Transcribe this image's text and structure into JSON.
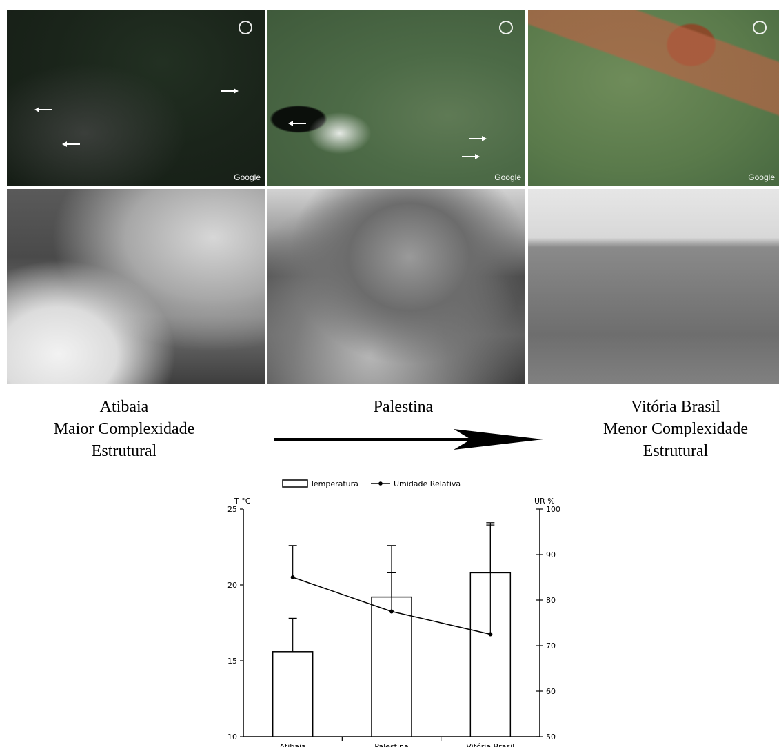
{
  "top_panels": {
    "satellite": [
      {
        "site": "Atibaia",
        "watermark": "Google"
      },
      {
        "site": "Palestina",
        "watermark": "Google"
      },
      {
        "site": "Vitória Brasil",
        "watermark": "Google"
      }
    ],
    "photos": [
      {
        "site": "Atibaia"
      },
      {
        "site": "Palestina"
      },
      {
        "site": "Vitória Brasil"
      }
    ]
  },
  "captions": {
    "left": [
      "Atibaia",
      "Maior Complexidade",
      "Estrutural"
    ],
    "center": [
      "Palestina"
    ],
    "right": [
      "Vitória Brasil",
      "Menor Complexidade",
      "Estrutural"
    ]
  },
  "chart_data": {
    "type": "bar",
    "categories": [
      "Atibaia",
      "Palestina",
      "Vitória Brasil"
    ],
    "series": [
      {
        "name": "Temperatura",
        "type": "bar",
        "axis": "left",
        "values": [
          15.6,
          19.2,
          20.8
        ],
        "error": [
          2.2,
          1.6,
          3.3
        ]
      },
      {
        "name": "Umidade Relativa",
        "type": "line",
        "axis": "right",
        "values": [
          85,
          77.5,
          72.5
        ],
        "error": [
          7,
          14.5,
          24
        ]
      }
    ],
    "left_axis": {
      "label": "T °C",
      "ylim": [
        10,
        25
      ],
      "ticks": [
        10,
        15,
        20,
        25
      ]
    },
    "right_axis": {
      "label": "UR %",
      "ylim": [
        50,
        100
      ],
      "ticks": [
        50,
        60,
        70,
        80,
        90,
        100
      ]
    },
    "legend": {
      "position": "top",
      "items": [
        "Temperatura",
        "Umidade Relativa"
      ]
    },
    "grid": false,
    "title": ""
  }
}
